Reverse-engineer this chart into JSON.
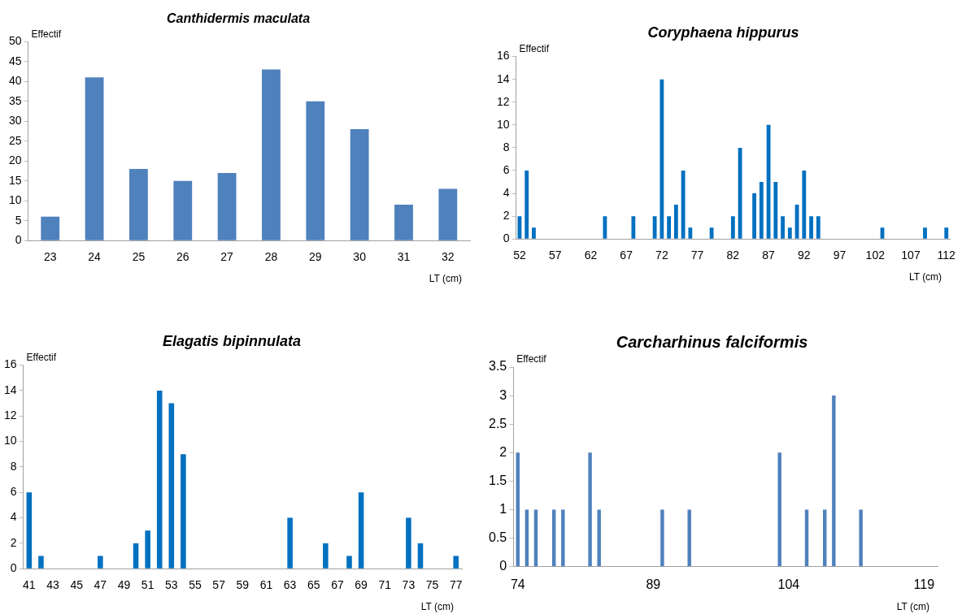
{
  "chart_data": [
    {
      "type": "bar",
      "title": "Canthidermis maculata",
      "xlabel": "LT (cm)",
      "ylabel": "Effectif",
      "categories": [
        "23",
        "24",
        "25",
        "26",
        "27",
        "28",
        "29",
        "30",
        "31",
        "32"
      ],
      "values": [
        6,
        41,
        18,
        15,
        17,
        43,
        35,
        28,
        9,
        13
      ],
      "color": "#4f81bd",
      "ylim": [
        0,
        50
      ],
      "yticks": [
        0,
        5,
        10,
        15,
        20,
        25,
        30,
        35,
        40,
        45,
        50
      ],
      "grid": false
    },
    {
      "type": "bar",
      "title": "Coryphaena hippurus",
      "xlabel": "LT (cm)",
      "ylabel": "Effectif",
      "categories": [
        "52",
        null,
        null,
        null,
        null,
        "57",
        null,
        null,
        null,
        null,
        "62",
        null,
        null,
        null,
        null,
        "67",
        null,
        null,
        null,
        null,
        "72",
        null,
        null,
        null,
        null,
        "77",
        null,
        null,
        null,
        null,
        "82",
        null,
        null,
        null,
        null,
        "87",
        null,
        null,
        null,
        null,
        "92",
        null,
        null,
        null,
        null,
        "97",
        null,
        null,
        null,
        null,
        "102",
        null,
        null,
        null,
        null,
        "107",
        null,
        null,
        null,
        null,
        "112"
      ],
      "values": [
        2,
        6,
        1,
        0,
        0,
        0,
        0,
        0,
        0,
        0,
        0,
        0,
        2,
        0,
        0,
        0,
        2,
        0,
        0,
        2,
        14,
        2,
        3,
        6,
        1,
        0,
        0,
        1,
        0,
        0,
        2,
        8,
        0,
        4,
        5,
        10,
        5,
        2,
        1,
        3,
        6,
        2,
        2,
        0,
        0,
        0,
        0,
        0,
        0,
        0,
        0,
        1,
        0,
        0,
        0,
        0,
        0,
        1,
        0,
        0,
        1
      ],
      "color": "#0070c0",
      "ylim": [
        0,
        16
      ],
      "yticks": [
        0,
        2,
        4,
        6,
        8,
        10,
        12,
        14,
        16
      ],
      "grid": false
    },
    {
      "type": "bar",
      "title": "Elagatis bipinnulata",
      "xlabel": "LT (cm)",
      "ylabel": "Effectif",
      "categories": [
        "41",
        null,
        "43",
        null,
        "45",
        null,
        "47",
        null,
        "49",
        null,
        "51",
        null,
        "53",
        null,
        "55",
        null,
        "57",
        null,
        "59",
        null,
        "61",
        null,
        "63",
        null,
        "65",
        null,
        "67",
        null,
        "69",
        null,
        "71",
        null,
        "73",
        null,
        "75",
        null,
        "77"
      ],
      "values": [
        6,
        1,
        0,
        0,
        0,
        0,
        1,
        0,
        0,
        2,
        3,
        14,
        13,
        9,
        0,
        0,
        0,
        0,
        0,
        0,
        0,
        0,
        4,
        0,
        0,
        2,
        0,
        1,
        6,
        0,
        0,
        0,
        4,
        2,
        0,
        0,
        1
      ],
      "color": "#0070c0",
      "ylim": [
        0,
        16
      ],
      "yticks": [
        0,
        2,
        4,
        6,
        8,
        10,
        12,
        14,
        16
      ],
      "grid": false
    },
    {
      "type": "bar",
      "title": "Carcharhinus falciformis",
      "xlabel": "LT (cm)",
      "ylabel": "Effectif",
      "categories": [
        "74",
        null,
        null,
        null,
        null,
        null,
        null,
        null,
        null,
        null,
        null,
        null,
        null,
        null,
        null,
        "89",
        null,
        null,
        null,
        null,
        null,
        null,
        null,
        null,
        null,
        null,
        null,
        null,
        null,
        null,
        "104",
        null,
        null,
        null,
        null,
        null,
        null,
        null,
        null,
        null,
        null,
        null,
        null,
        null,
        null,
        "119",
        null
      ],
      "values": [
        2,
        1,
        1,
        0,
        1,
        1,
        0,
        0,
        2,
        1,
        0,
        0,
        0,
        0,
        0,
        0,
        1,
        0,
        0,
        1,
        0,
        0,
        0,
        0,
        0,
        0,
        0,
        0,
        0,
        2,
        0,
        0,
        1,
        0,
        1,
        3,
        0,
        0,
        1,
        0,
        0,
        0,
        0,
        0,
        0,
        0,
        0
      ],
      "color": "#4f81bd",
      "ylim": [
        0,
        3.5
      ],
      "yticks": [
        0,
        0.5,
        1,
        1.5,
        2,
        2.5,
        3,
        3.5
      ],
      "grid": false
    }
  ]
}
